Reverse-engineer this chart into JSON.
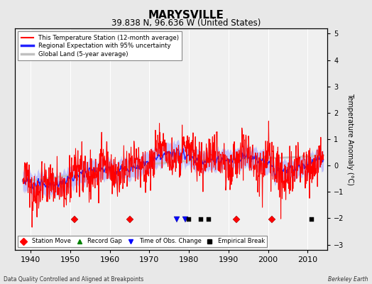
{
  "title": "MARYSVILLE",
  "subtitle": "39.838 N, 96.636 W (United States)",
  "xlabel_note": "Data Quality Controlled and Aligned at Breakpoints",
  "xlabel_right": "Berkeley Earth",
  "ylabel": "Temperature Anomaly (°C)",
  "xlim": [
    1936,
    2015
  ],
  "ylim": [
    -3.2,
    5.2
  ],
  "yticks": [
    -3,
    -2,
    -1,
    0,
    1,
    2,
    3,
    4,
    5
  ],
  "xticks": [
    1940,
    1950,
    1960,
    1970,
    1980,
    1990,
    2000,
    2010
  ],
  "background_color": "#e8e8e8",
  "plot_background": "#f0f0f0",
  "grid_color": "#ffffff",
  "station_color": "#ff0000",
  "regional_color": "#2222ff",
  "regional_fill_color": "#9999ff",
  "global_color": "#c0c0c0",
  "marker_y": -2.05,
  "event_markers": {
    "station_moves": [
      1951,
      1965,
      1992,
      2001
    ],
    "time_obs_changes": [
      1977,
      1979
    ],
    "empirical_breaks": [
      1980,
      1983,
      1985,
      2011
    ]
  }
}
